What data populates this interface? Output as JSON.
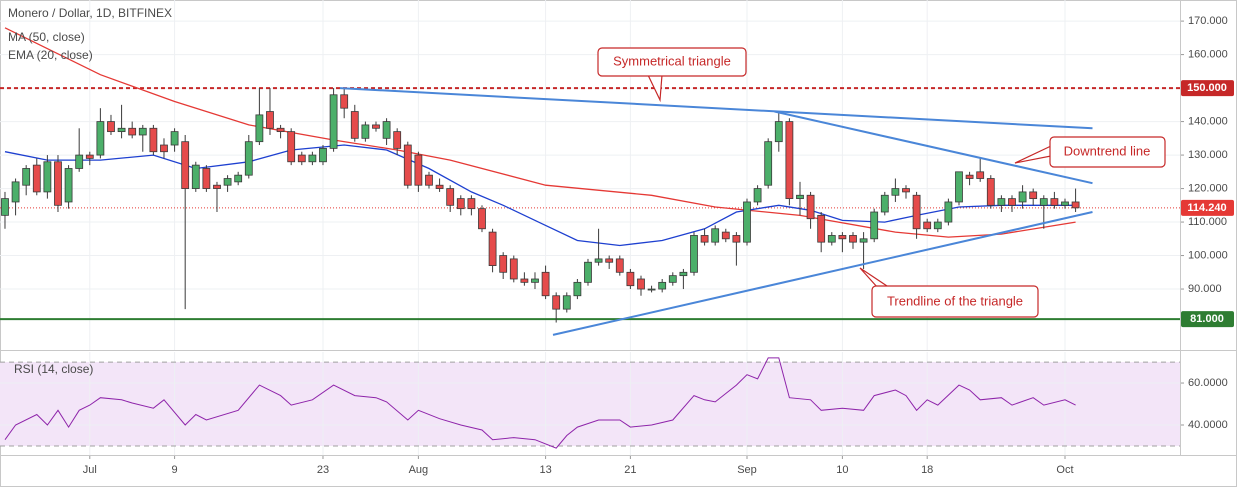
{
  "chart_data": {
    "type": "candlestick",
    "title": "Monero / Dollar, 1D, BITFINEX",
    "up_color": "#4caf6a",
    "down_color": "#e54b4b",
    "wick_color": "#3a3a3a",
    "open": [
      112,
      116,
      121,
      127,
      119,
      128,
      116,
      126,
      130,
      130,
      140,
      137,
      138,
      136,
      138,
      133,
      133,
      134,
      120,
      126,
      121,
      121,
      122,
      124,
      134,
      143,
      138,
      137,
      130,
      128,
      128,
      132,
      148,
      143,
      135,
      139,
      135,
      137,
      133,
      130,
      124,
      121,
      120,
      117,
      117,
      114,
      107,
      100,
      99,
      93,
      92,
      95,
      88,
      84,
      88,
      92,
      98,
      99,
      99,
      95,
      93,
      90,
      90,
      92,
      94,
      95,
      106,
      104,
      107,
      106,
      104,
      116,
      121,
      134,
      140,
      117,
      118,
      112,
      104,
      106,
      106,
      104,
      105,
      113,
      118,
      120,
      118,
      110,
      108,
      110,
      116,
      124,
      125,
      123,
      115,
      117,
      116,
      119,
      115,
      117,
      115,
      116
    ],
    "high": [
      119,
      123,
      127,
      129,
      130,
      130,
      127,
      138,
      131,
      144,
      142,
      145,
      140,
      139,
      139,
      135,
      138,
      136,
      128,
      127,
      122,
      124,
      125,
      136,
      150,
      150,
      139,
      138,
      131,
      131,
      133,
      150,
      150,
      145,
      140,
      140,
      141,
      138,
      134,
      131,
      125,
      123,
      121,
      118,
      118,
      115,
      108,
      101,
      100,
      95,
      95,
      97,
      89,
      89,
      93,
      99,
      108,
      100,
      100,
      96,
      94,
      91,
      93,
      95,
      96,
      107,
      108,
      109,
      108,
      107,
      117,
      121,
      135,
      143,
      141,
      122,
      119,
      113,
      107,
      107,
      107,
      107,
      114,
      119,
      123,
      121,
      119,
      111,
      111,
      117,
      125,
      125,
      129,
      124,
      118,
      118,
      121,
      120,
      118,
      119,
      117,
      120
    ],
    "low": [
      108,
      112,
      118,
      118,
      117,
      113,
      114,
      125,
      127,
      129,
      136,
      135,
      135,
      131,
      130,
      129,
      131,
      84,
      119,
      119,
      113,
      119,
      121,
      123,
      133,
      136,
      135,
      127,
      127,
      127,
      127,
      131,
      141,
      134,
      134,
      137,
      133,
      130,
      120,
      119,
      120,
      119,
      113,
      112,
      112,
      107,
      95,
      93,
      92,
      91,
      90,
      87,
      80,
      83,
      87,
      91,
      97,
      96,
      94,
      90,
      88,
      89,
      89,
      91,
      90,
      94,
      103,
      103,
      104,
      97,
      103,
      115,
      120,
      131,
      115,
      112,
      108,
      101,
      103,
      101,
      102,
      96,
      104,
      112,
      116,
      117,
      105,
      107,
      107,
      109,
      115,
      121,
      122,
      114,
      113,
      113,
      114,
      115,
      108,
      114,
      114,
      113
    ],
    "close": [
      117,
      122,
      126,
      119,
      128,
      115,
      126,
      130,
      129,
      140,
      137,
      138,
      136,
      138,
      131,
      131,
      137,
      120,
      127,
      120,
      120,
      123,
      124,
      134,
      142,
      138,
      137,
      128,
      128,
      130,
      132,
      148,
      144,
      135,
      139,
      138,
      140,
      132,
      121,
      121,
      121,
      120,
      115,
      114,
      114,
      108,
      97,
      95,
      93,
      92,
      93,
      88,
      84,
      88,
      92,
      98,
      99,
      98,
      95,
      91,
      90,
      90,
      92,
      94,
      95,
      106,
      104,
      108,
      105,
      104,
      116,
      120,
      134,
      140,
      117,
      118,
      111,
      104,
      106,
      105,
      104,
      105,
      113,
      118,
      120,
      119,
      108,
      108,
      110,
      116,
      125,
      123,
      123,
      115,
      117,
      115,
      119,
      117,
      117,
      115,
      116,
      114.24
    ],
    "series": [
      {
        "name": "MA (50, close)",
        "color": "#e53935",
        "x": [
          0,
          9,
          16,
          23,
          31,
          37,
          42,
          51,
          61,
          67,
          75,
          84,
          89,
          94,
          101
        ],
        "values": [
          168,
          154,
          146,
          139,
          134.5,
          131.5,
          128.5,
          121,
          118,
          114.5,
          112,
          107,
          105.5,
          106.4,
          110
        ]
      },
      {
        "name": "EMA (20, close)",
        "color": "#1e40d0",
        "x": [
          0,
          4,
          9,
          14,
          18,
          23,
          27,
          32,
          36,
          40,
          44,
          47,
          51,
          54,
          58,
          62,
          66,
          69,
          73,
          76,
          79,
          83,
          86,
          90,
          94,
          101
        ],
        "values": [
          131,
          128.5,
          128.5,
          130,
          126,
          128,
          131.5,
          133,
          131.5,
          126,
          119,
          115,
          109,
          104.5,
          103,
          104.5,
          108,
          113,
          115,
          113.5,
          110.5,
          110,
          112,
          114.5,
          115,
          115
        ]
      }
    ],
    "xlim": [
      -0.47,
      110.85
    ],
    "xticks": [
      {
        "value": 8,
        "label": "Jul"
      },
      {
        "value": 16,
        "label": "9"
      },
      {
        "value": 30,
        "label": "23"
      },
      {
        "value": 39,
        "label": "Aug"
      },
      {
        "value": 51,
        "label": "13"
      },
      {
        "value": 59,
        "label": "21"
      },
      {
        "value": 70,
        "label": "Sep"
      },
      {
        "value": 79,
        "label": "10"
      },
      {
        "value": 87,
        "label": "18"
      },
      {
        "value": 100,
        "label": "Oct"
      }
    ],
    "ylim": [
      71.8,
      176.3
    ],
    "yticks": [
      {
        "value": 90,
        "label": "90.000"
      },
      {
        "value": 100,
        "label": "100.000"
      },
      {
        "value": 110,
        "label": "110.000"
      },
      {
        "value": 120,
        "label": "120.000"
      },
      {
        "value": 130,
        "label": "130.000"
      },
      {
        "value": 140,
        "label": "140.000"
      },
      {
        "value": 150,
        "label": "150.000"
      },
      {
        "value": 160,
        "label": "160.000"
      },
      {
        "value": 170,
        "label": "170.000"
      }
    ],
    "grid": true,
    "levels": [
      {
        "value": 150,
        "label": "150.000",
        "color": "#c62828",
        "style": "dashed"
      },
      {
        "value": 81,
        "label": "81.000",
        "color": "#2e7d32",
        "style": "solid"
      }
    ],
    "last_price": {
      "value": 114.24,
      "label": "114.240",
      "color": "#e53935"
    },
    "trendlines": [
      {
        "color": "#4a86d8",
        "x": [
          31.6,
          102.6
        ],
        "values": [
          150,
          138
        ]
      },
      {
        "color": "#4a86d8",
        "x": [
          72.6,
          102.6
        ],
        "values": [
          143,
          121.6
        ]
      },
      {
        "color": "#4a86d8",
        "x": [
          51.7,
          102.6
        ],
        "values": [
          76.3,
          113
        ]
      }
    ],
    "annotations": [
      {
        "text": "Symmetrical triangle"
      },
      {
        "text": "Downtrend line"
      },
      {
        "text": "Trendline of the triangle"
      }
    ],
    "rsi": {
      "name": "RSI (14, close)",
      "color": "#8e24aa",
      "x": [
        0,
        1,
        3,
        4,
        5,
        6,
        7,
        8,
        9,
        11,
        12,
        14,
        15,
        17,
        18,
        19,
        22,
        24,
        26,
        27,
        29,
        31,
        33,
        35,
        36,
        38,
        39,
        41,
        43,
        45,
        46,
        48,
        50,
        52,
        53,
        54,
        56,
        58,
        59,
        61,
        63,
        65,
        66,
        67,
        69,
        70,
        71,
        72,
        73,
        74,
        76,
        77,
        79,
        81,
        82,
        84,
        85,
        86,
        87,
        88,
        90,
        91,
        92,
        94,
        95,
        97,
        98,
        100,
        101
      ],
      "values": [
        33,
        40,
        45,
        40,
        47,
        39,
        47,
        49.5,
        53,
        52,
        50.5,
        48,
        52,
        40,
        45,
        42.4,
        47,
        59,
        54,
        49.5,
        52,
        59,
        54,
        53,
        51,
        42.4,
        47,
        43,
        40,
        37.6,
        33,
        34,
        33,
        29,
        35,
        39,
        42.4,
        42.4,
        39,
        40,
        42.4,
        54,
        52,
        51,
        59,
        64,
        62,
        72,
        72,
        53,
        52,
        47,
        48,
        47,
        54,
        56.7,
        54,
        47,
        52,
        49.5,
        59,
        56.7,
        52,
        53,
        49.5,
        53,
        49.5,
        52,
        49.5
      ],
      "ylim": [
        25.7,
        74.8
      ],
      "yticks": [
        {
          "value": 40,
          "label": "40.0000"
        },
        {
          "value": 60,
          "label": "60.0000"
        }
      ],
      "levels": [
        30,
        70
      ]
    }
  }
}
